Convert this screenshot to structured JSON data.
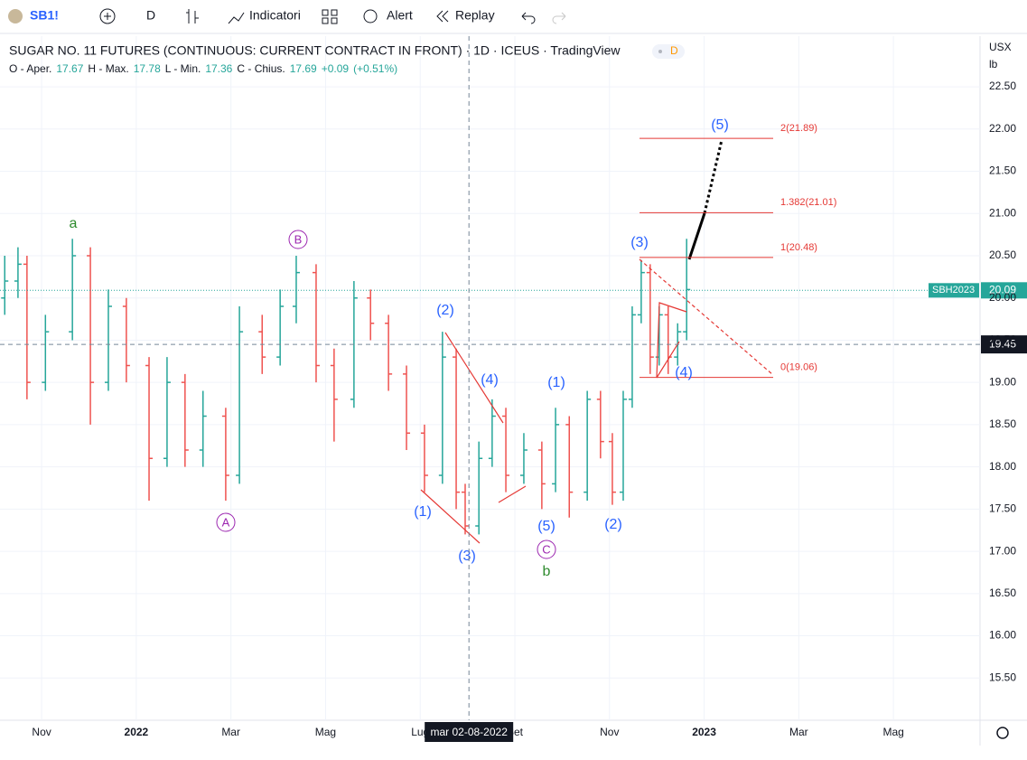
{
  "toolbar": {
    "symbol": "SB1!",
    "interval": "D",
    "indicators": "Indicatori",
    "alert": "Alert",
    "replay": "Replay"
  },
  "chart_data": {
    "type": "ohlc",
    "title": "SUGAR NO. 11 FUTURES (CONTINUOUS: CURRENT CONTRACT IN FRONT) · 1D · ICEUS · TradingView",
    "badge": "D",
    "legend": {
      "open_label": "O - Aper.",
      "open": 17.67,
      "high_label": "H - Max.",
      "high": 17.78,
      "low_label": "L - Min.",
      "low": 17.36,
      "close_label": "C - Chius.",
      "close": 17.69,
      "change": "+0.09",
      "change_pct": "(+0.51%)"
    },
    "currency": "USX",
    "unit": "lb",
    "up_color": "#26a69a",
    "down_color": "#ef5350",
    "x": [
      -0.78,
      -0.5,
      -0.31,
      0.08,
      0.65,
      1.03,
      1.41,
      1.79,
      2.27,
      2.65,
      3.03,
      3.41,
      3.89,
      4.18,
      4.66,
      5.04,
      5.38,
      5.8,
      6.18,
      6.6,
      6.95,
      7.33,
      7.71,
      8.09,
      8.47,
      8.76,
      8.95,
      9.24,
      9.52,
      9.81,
      10.19,
      10.57,
      10.86,
      11.15,
      11.53,
      11.81,
      12.06,
      12.29,
      12.48,
      12.67,
      12.86,
      13.05,
      13.24,
      13.44,
      13.63
    ],
    "open": [
      20.0,
      20.2,
      20.4,
      19.0,
      19.6,
      20.5,
      19.0,
      19.9,
      19.2,
      18.1,
      19.0,
      18.2,
      18.6,
      17.9,
      19.6,
      19.3,
      19.9,
      20.3,
      19.2,
      18.8,
      20.0,
      19.7,
      19.1,
      18.4,
      17.9,
      19.3,
      17.7,
      17.3,
      18.1,
      18.6,
      17.9,
      18.2,
      17.8,
      18.5,
      17.7,
      18.8,
      18.3,
      17.7,
      18.8,
      19.8,
      20.3,
      19.3,
      19.8,
      19.3,
      19.6
    ],
    "high": [
      20.5,
      20.6,
      20.5,
      19.8,
      20.7,
      20.6,
      20.1,
      20.0,
      19.3,
      19.3,
      19.1,
      18.9,
      18.7,
      19.9,
      19.8,
      20.1,
      20.5,
      20.4,
      19.4,
      20.2,
      20.1,
      19.8,
      19.2,
      18.5,
      19.6,
      19.4,
      17.8,
      18.3,
      18.8,
      18.7,
      18.4,
      18.3,
      18.7,
      18.6,
      18.9,
      18.9,
      18.4,
      18.9,
      19.9,
      20.45,
      20.4,
      19.9,
      19.9,
      19.7,
      20.7
    ],
    "low": [
      19.8,
      20.0,
      18.8,
      18.9,
      19.5,
      18.5,
      18.9,
      19.0,
      17.6,
      18.0,
      18.0,
      18.0,
      17.6,
      17.8,
      19.1,
      19.2,
      19.7,
      19.0,
      18.3,
      18.7,
      19.5,
      18.9,
      18.2,
      17.7,
      17.8,
      17.5,
      17.2,
      17.2,
      18.0,
      17.7,
      17.8,
      17.5,
      17.7,
      17.4,
      17.6,
      18.1,
      17.55,
      17.6,
      18.7,
      19.7,
      19.1,
      19.2,
      19.1,
      19.2,
      19.5
    ],
    "close": [
      20.2,
      20.4,
      19.0,
      19.6,
      20.5,
      19.0,
      19.9,
      19.2,
      18.1,
      19.0,
      18.2,
      18.6,
      17.9,
      19.6,
      19.3,
      19.9,
      20.3,
      19.2,
      18.8,
      20.0,
      19.7,
      19.1,
      18.4,
      17.9,
      19.3,
      17.7,
      17.3,
      18.1,
      18.6,
      17.9,
      18.2,
      17.8,
      18.5,
      17.7,
      18.8,
      18.3,
      17.7,
      18.8,
      19.8,
      20.3,
      19.3,
      19.8,
      19.3,
      19.6,
      20.1
    ],
    "xlim": [
      -0.88,
      19.83
    ],
    "xticks": [
      {
        "value": 0,
        "label": "Nov"
      },
      {
        "value": 2,
        "label": "2022"
      },
      {
        "value": 4,
        "label": "Mar"
      },
      {
        "value": 6,
        "label": "Mag"
      },
      {
        "value": 8,
        "label": "Lug"
      },
      {
        "value": 10,
        "label": "Set"
      },
      {
        "value": 12,
        "label": "Nov"
      },
      {
        "value": 14,
        "label": "2023"
      },
      {
        "value": 16,
        "label": "Mar"
      },
      {
        "value": 18,
        "label": "Mag"
      }
    ],
    "ylim": [
      15.0,
      23.1
    ],
    "yticks": [
      {
        "value": 22.5,
        "label": "22.50"
      },
      {
        "value": 22,
        "label": "22.00"
      },
      {
        "value": 21.5,
        "label": "21.50"
      },
      {
        "value": 21,
        "label": "21.00"
      },
      {
        "value": 20.5,
        "label": "20.50"
      },
      {
        "value": 20,
        "label": "20.00"
      },
      {
        "value": 19.5,
        "label": "19.50"
      },
      {
        "value": 19,
        "label": "19.00"
      },
      {
        "value": 18.5,
        "label": "18.50"
      },
      {
        "value": 18,
        "label": "18.00"
      },
      {
        "value": 17.5,
        "label": "17.50"
      },
      {
        "value": 17,
        "label": "17.00"
      },
      {
        "value": 16.5,
        "label": "16.50"
      },
      {
        "value": 16,
        "label": "16.00"
      },
      {
        "value": 15.5,
        "label": "15.50"
      }
    ],
    "grid": true,
    "last_price": {
      "name": "SBH2023",
      "value": 20.09,
      "color": "#26a69a"
    },
    "crosshair": {
      "price": 19.45,
      "x": 9.03,
      "date_label": "mar 02-08-2022"
    },
    "fib_levels": [
      {
        "value": 21.89,
        "label": "2(21.89)"
      },
      {
        "value": 21.01,
        "label": "1.382(21.01)"
      },
      {
        "value": 20.48,
        "label": "1(20.48)"
      },
      {
        "value": 19.06,
        "label": "0(19.06)"
      }
    ],
    "fib_color": "#e53935",
    "annotations": [
      {
        "text": "a",
        "color": "#2e8b2e"
      },
      {
        "text": "B",
        "color": "#9c27b0",
        "circled": true
      },
      {
        "text": "A",
        "color": "#9c27b0",
        "circled": true
      },
      {
        "text": "(2)",
        "color": "#2962ff"
      },
      {
        "text": "(4)",
        "color": "#2962ff"
      },
      {
        "text": "(1)",
        "color": "#2962ff"
      },
      {
        "text": "(3)",
        "color": "#2962ff"
      },
      {
        "text": "(1)",
        "color": "#2962ff"
      },
      {
        "text": "(5)",
        "color": "#2962ff"
      },
      {
        "text": "C",
        "color": "#9c27b0",
        "circled": true
      },
      {
        "text": "b",
        "color": "#2e8b2e"
      },
      {
        "text": "(2)",
        "color": "#2962ff"
      },
      {
        "text": "(3)",
        "color": "#2962ff"
      },
      {
        "text": "(4)",
        "color": "#2962ff"
      },
      {
        "text": "(5)",
        "color": "#2962ff"
      }
    ]
  }
}
